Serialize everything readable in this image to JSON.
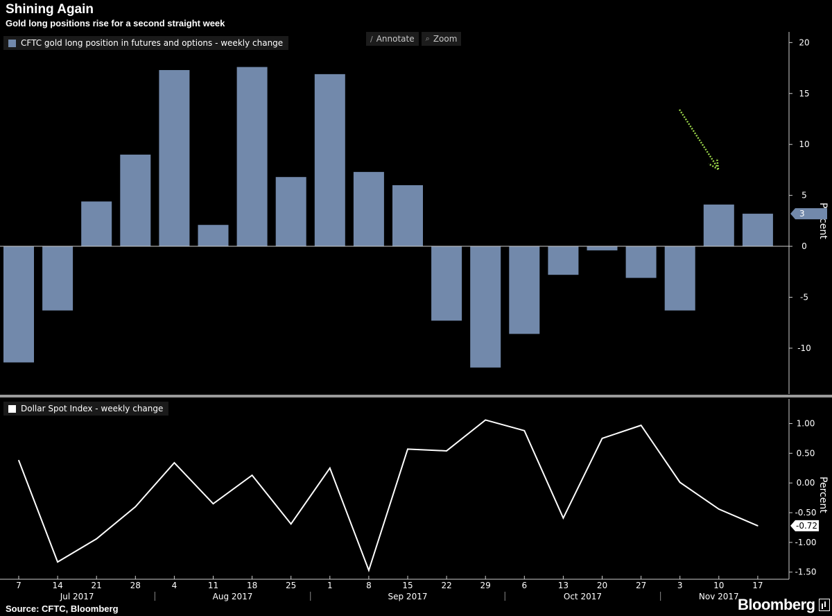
{
  "header": {
    "title": "Shining Again",
    "subtitle": "Gold long positions rise for a second straight week"
  },
  "toolbar": {
    "annotate_label": "Annotate",
    "zoom_label": "Zoom"
  },
  "footer": {
    "source": "Source: CFTC, Bloomberg",
    "brand": "Bloomberg"
  },
  "colors": {
    "bar": "#7289ab",
    "line": "#ffffff",
    "arrow": "#9cd84a",
    "divider": "#9a9a9a"
  },
  "chart_data": [
    {
      "type": "bar",
      "legend": "CFTC gold long position in futures and options - weekly change",
      "ylabel": "Percent",
      "ylim": [
        -14.5,
        20.5
      ],
      "yticks": [
        20,
        15,
        10,
        5,
        0,
        -5,
        -10
      ],
      "last_value_label": "3",
      "last_value": 3.2,
      "categories": [
        "7",
        "14",
        "21",
        "28",
        "4",
        "11",
        "18",
        "25",
        "1",
        "8",
        "15",
        "22",
        "29",
        "6",
        "13",
        "20",
        "27",
        "3",
        "10",
        "17"
      ],
      "values": [
        -11.4,
        -6.3,
        4.4,
        9.0,
        17.3,
        2.1,
        17.6,
        6.8,
        16.9,
        7.3,
        6.0,
        -7.3,
        -11.9,
        -8.6,
        -2.8,
        -0.4,
        -3.1,
        -6.3,
        4.1,
        3.2
      ]
    },
    {
      "type": "line",
      "legend": "Dollar Spot Index - weekly change",
      "ylabel": "Percent",
      "ylim": [
        -1.62,
        1.38
      ],
      "yticks": [
        "1.00",
        "0.50",
        "0.00",
        "-0.50",
        "-1.00",
        "-1.50"
      ],
      "last_value_label": "-0.72",
      "categories": [
        "7",
        "14",
        "21",
        "28",
        "4",
        "11",
        "18",
        "25",
        "1",
        "8",
        "15",
        "22",
        "29",
        "6",
        "13",
        "20",
        "27",
        "3",
        "10",
        "17"
      ],
      "values": [
        0.38,
        -1.33,
        -0.94,
        -0.4,
        0.34,
        -0.35,
        0.13,
        -0.69,
        0.25,
        -1.47,
        0.57,
        0.54,
        1.06,
        0.88,
        -0.59,
        0.75,
        0.97,
        0.01,
        -0.44,
        -0.72
      ]
    }
  ],
  "x_axis": {
    "months": [
      {
        "label": "Jul 2017",
        "start": 0,
        "end": 3
      },
      {
        "label": "Aug 2017",
        "start": 4,
        "end": 7
      },
      {
        "label": "Sep 2017",
        "start": 8,
        "end": 12
      },
      {
        "label": "Oct 2017",
        "start": 13,
        "end": 16
      },
      {
        "label": "Nov 2017",
        "start": 17,
        "end": 19
      }
    ]
  }
}
